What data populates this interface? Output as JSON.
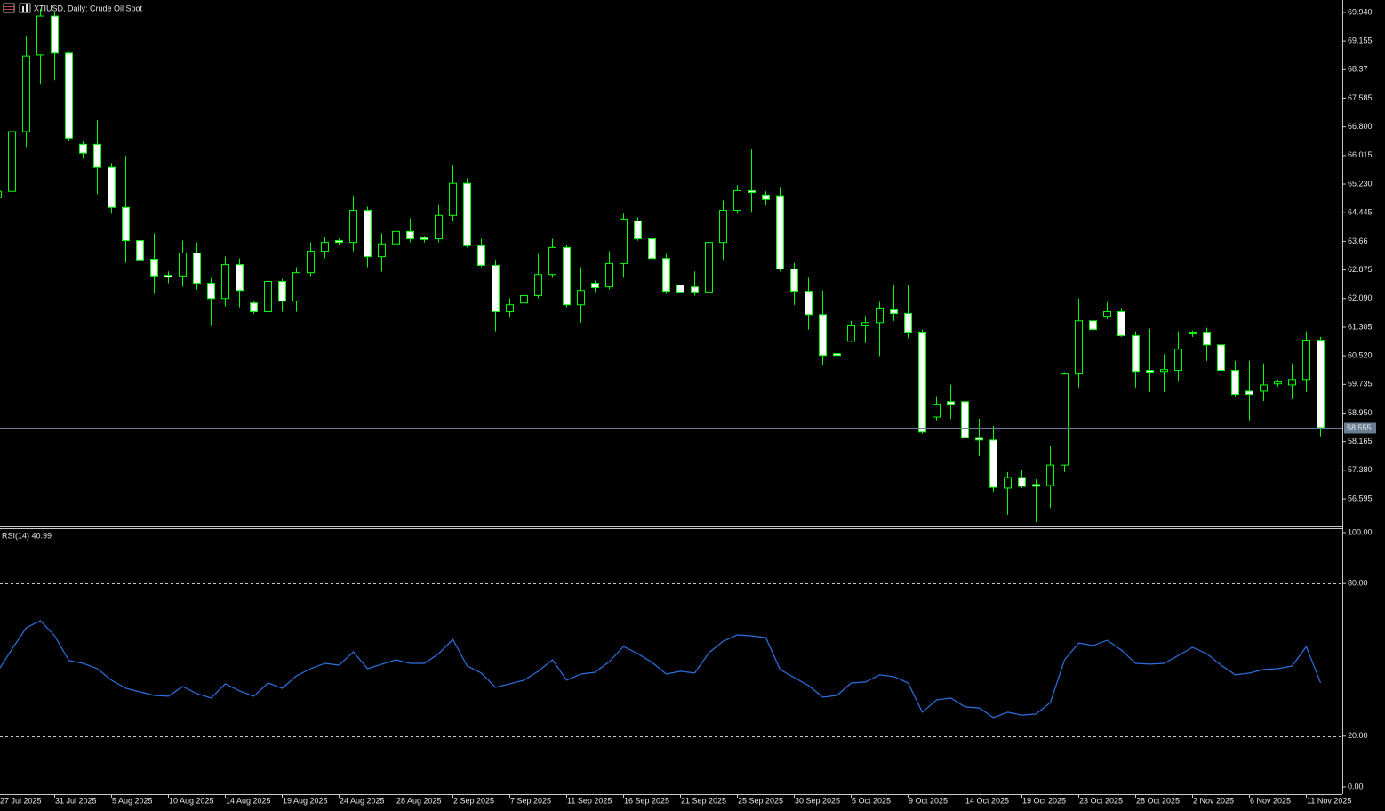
{
  "chart_data": [
    {
      "type": "candlestick",
      "title": "XTIUSD, Daily:  Crude Oil Spot",
      "categories": [
        "27 Jul 2025",
        null,
        null,
        null,
        "31 Jul 2025",
        null,
        null,
        null,
        "5 Aug 2025",
        null,
        null,
        null,
        "10 Aug 2025",
        null,
        null,
        null,
        "14 Aug 2025",
        null,
        null,
        null,
        "19 Aug 2025",
        null,
        null,
        null,
        "24 Aug 2025",
        null,
        null,
        null,
        "28 Aug 2025",
        null,
        null,
        null,
        "2 Sep 2025",
        null,
        null,
        null,
        "7 Sep 2025",
        null,
        null,
        null,
        "11 Sep 2025",
        null,
        null,
        null,
        "16 Sep 2025",
        null,
        null,
        null,
        "21 Sep 2025",
        null,
        null,
        null,
        "25 Sep 2025",
        null,
        null,
        null,
        "30 Sep 2025",
        null,
        null,
        null,
        "5 Oct 2025",
        null,
        null,
        null,
        "9 Oct 2025",
        null,
        null,
        null,
        "14 Oct 2025",
        null,
        null,
        null,
        "19 Oct 2025",
        null,
        null,
        null,
        "23 Oct 2025",
        null,
        null,
        null,
        "28 Oct 2025",
        null,
        null,
        null,
        "2 Nov 2025",
        null,
        null,
        null,
        "6 Nov 2025",
        null,
        null,
        null,
        "11 Nov 2025",
        null
      ],
      "open": [
        64.86,
        65.03,
        66.67,
        68.77,
        69.84,
        68.82,
        66.32,
        66.32,
        65.69,
        64.59,
        63.68,
        63.17,
        62.73,
        62.71,
        63.34,
        62.51,
        62.09,
        63.02,
        61.97,
        61.73,
        62.56,
        62.02,
        62.8,
        63.39,
        63.68,
        63.63,
        64.51,
        63.24,
        63.59,
        63.93,
        63.76,
        63.73,
        64.37,
        65.25,
        63.54,
        63.0,
        61.73,
        61.97,
        62.17,
        62.75,
        63.49,
        61.92,
        62.51,
        62.41,
        63.05,
        64.22,
        63.73,
        63.19,
        62.46,
        62.41,
        62.27,
        63.63,
        64.51,
        65.05,
        64.93,
        64.91,
        62.9,
        62.29,
        61.65,
        60.58,
        60.92,
        61.34,
        61.43,
        61.78,
        61.68,
        61.17,
        58.84,
        59.26,
        59.26,
        58.28,
        58.21,
        56.89,
        57.18,
        56.99,
        56.96,
        57.52,
        60.02,
        61.48,
        61.61,
        61.73,
        61.07,
        60.12,
        60.09,
        60.12,
        61.17,
        61.17,
        60.82,
        60.12,
        59.55,
        59.55,
        59.75,
        59.72,
        59.87,
        60.95
      ],
      "high": [
        65.2,
        66.91,
        69.3,
        70.04,
        69.94,
        68.87,
        66.42,
        66.98,
        65.81,
        66.01,
        64.42,
        63.88,
        62.83,
        63.68,
        63.63,
        62.66,
        63.24,
        63.19,
        62.02,
        62.95,
        62.63,
        62.95,
        63.63,
        63.78,
        63.73,
        64.91,
        64.61,
        63.88,
        64.42,
        64.29,
        63.81,
        64.66,
        65.74,
        65.39,
        63.73,
        63.15,
        62.09,
        63.05,
        63.32,
        63.73,
        63.56,
        62.95,
        62.58,
        63.39,
        64.42,
        64.32,
        64.05,
        63.32,
        62.46,
        62.83,
        63.73,
        64.78,
        65.2,
        66.18,
        65.03,
        65.15,
        63.07,
        62.66,
        62.31,
        61.12,
        61.48,
        61.61,
        62.0,
        62.46,
        62.46,
        61.24,
        59.41,
        59.72,
        59.33,
        58.79,
        58.6,
        57.33,
        57.38,
        57.13,
        58.06,
        60.07,
        62.09,
        62.41,
        62.0,
        61.83,
        61.19,
        61.26,
        60.56,
        61.19,
        61.21,
        61.29,
        60.87,
        60.38,
        60.38,
        60.31,
        59.87,
        60.31,
        61.19,
        61.04
      ],
      "low": [
        64.78,
        64.91,
        66.25,
        67.96,
        68.08,
        66.42,
        65.93,
        64.95,
        64.42,
        63.07,
        63.05,
        62.22,
        62.51,
        62.41,
        62.34,
        61.34,
        61.87,
        61.85,
        61.68,
        61.48,
        61.73,
        61.73,
        62.71,
        63.19,
        63.56,
        63.39,
        62.95,
        62.83,
        63.19,
        63.63,
        63.63,
        63.63,
        64.22,
        63.49,
        62.95,
        61.19,
        61.58,
        61.68,
        62.09,
        62.66,
        61.85,
        61.43,
        62.27,
        62.34,
        62.66,
        63.68,
        62.95,
        62.22,
        62.27,
        62.17,
        61.78,
        63.15,
        64.42,
        64.47,
        64.66,
        62.83,
        61.92,
        61.24,
        60.26,
        60.51,
        60.9,
        60.87,
        60.51,
        61.48,
        61.0,
        58.38,
        58.75,
        58.79,
        57.33,
        57.77,
        56.79,
        56.16,
        56.89,
        55.96,
        56.35,
        57.33,
        59.65,
        61.04,
        61.53,
        61.04,
        59.65,
        59.53,
        59.53,
        59.82,
        61.04,
        60.38,
        60.02,
        59.41,
        58.75,
        59.28,
        59.67,
        59.33,
        59.53,
        58.31
      ],
      "close": [
        65.03,
        66.67,
        68.74,
        69.84,
        68.82,
        66.49,
        66.08,
        65.69,
        64.59,
        63.68,
        63.15,
        62.71,
        62.68,
        63.34,
        62.51,
        62.09,
        63.02,
        62.31,
        61.73,
        62.56,
        62.02,
        62.8,
        63.39,
        63.63,
        63.63,
        64.51,
        63.24,
        63.59,
        63.93,
        63.73,
        63.71,
        64.37,
        65.25,
        63.54,
        63.0,
        61.73,
        61.92,
        62.17,
        62.75,
        63.49,
        61.92,
        62.31,
        62.39,
        63.05,
        64.27,
        63.73,
        63.19,
        62.29,
        62.27,
        62.27,
        63.63,
        64.51,
        65.05,
        65.0,
        64.81,
        62.9,
        62.29,
        61.65,
        60.53,
        60.53,
        61.34,
        61.43,
        61.83,
        61.68,
        61.17,
        58.43,
        59.19,
        59.19,
        58.28,
        58.21,
        56.91,
        57.18,
        56.94,
        56.94,
        57.52,
        60.02,
        61.48,
        61.24,
        61.73,
        61.07,
        60.09,
        60.07,
        60.14,
        60.7,
        61.12,
        60.82,
        60.12,
        59.46,
        59.46,
        59.72,
        59.8,
        59.87,
        60.95,
        58.55
      ],
      "up_color": "#00ff00",
      "down_color": "#ffffff",
      "ylim": [
        55.84,
        70.28
      ],
      "yticks": [
        {
          "value": 69.94,
          "label": "69.940"
        },
        69.155,
        68.37,
        67.585,
        {
          "value": 66.8,
          "label": "66.800"
        },
        66.015,
        {
          "value": 65.23,
          "label": "65.230"
        },
        64.445,
        63.66,
        62.875,
        {
          "value": 62.09,
          "label": "62.090"
        },
        61.305,
        {
          "value": 60.52,
          "label": "60.520"
        },
        59.735,
        {
          "value": 58.95,
          "label": "58.950"
        },
        58.165,
        {
          "value": 57.38,
          "label": "57.380"
        },
        56.595
      ],
      "current_price": 58.555,
      "current_price_color": "#6a7d91"
    },
    {
      "type": "line",
      "title": "RSI(14) 40.99",
      "color": "#2f6fe0",
      "values": [
        45.5,
        54.2,
        62.6,
        65.4,
        59.4,
        49.7,
        48.6,
        46.5,
        42.0,
        38.8,
        37.4,
        36.0,
        35.7,
        39.5,
        36.7,
        35.0,
        40.6,
        37.8,
        35.7,
        40.9,
        38.8,
        43.7,
        46.5,
        48.6,
        47.9,
        53.1,
        46.5,
        48.3,
        50.0,
        48.6,
        48.6,
        52.4,
        58.0,
        47.6,
        44.8,
        39.2,
        40.6,
        42.0,
        45.5,
        50.0,
        42.0,
        44.4,
        45.1,
        49.3,
        55.2,
        52.4,
        49.0,
        44.4,
        45.5,
        44.8,
        52.8,
        57.3,
        59.8,
        59.4,
        58.7,
        46.2,
        43.0,
        39.9,
        35.3,
        36.0,
        40.9,
        41.3,
        44.1,
        43.4,
        40.9,
        29.4,
        34.3,
        35.0,
        31.5,
        31.1,
        27.3,
        29.4,
        28.3,
        28.7,
        33.2,
        50.0,
        56.6,
        55.6,
        57.7,
        53.8,
        48.6,
        48.3,
        48.6,
        51.7,
        54.9,
        52.4,
        47.9,
        44.1,
        44.8,
        46.2,
        46.5,
        47.6,
        55.2,
        40.99
      ],
      "ylim": [
        0,
        100
      ],
      "yticks": [
        {
          "value": 100,
          "label": "100.00"
        },
        {
          "value": 80,
          "label": "80.00"
        },
        {
          "value": 20,
          "label": "20.00"
        },
        {
          "value": 0,
          "label": "0.00"
        }
      ],
      "levels": [
        80,
        20
      ]
    }
  ]
}
